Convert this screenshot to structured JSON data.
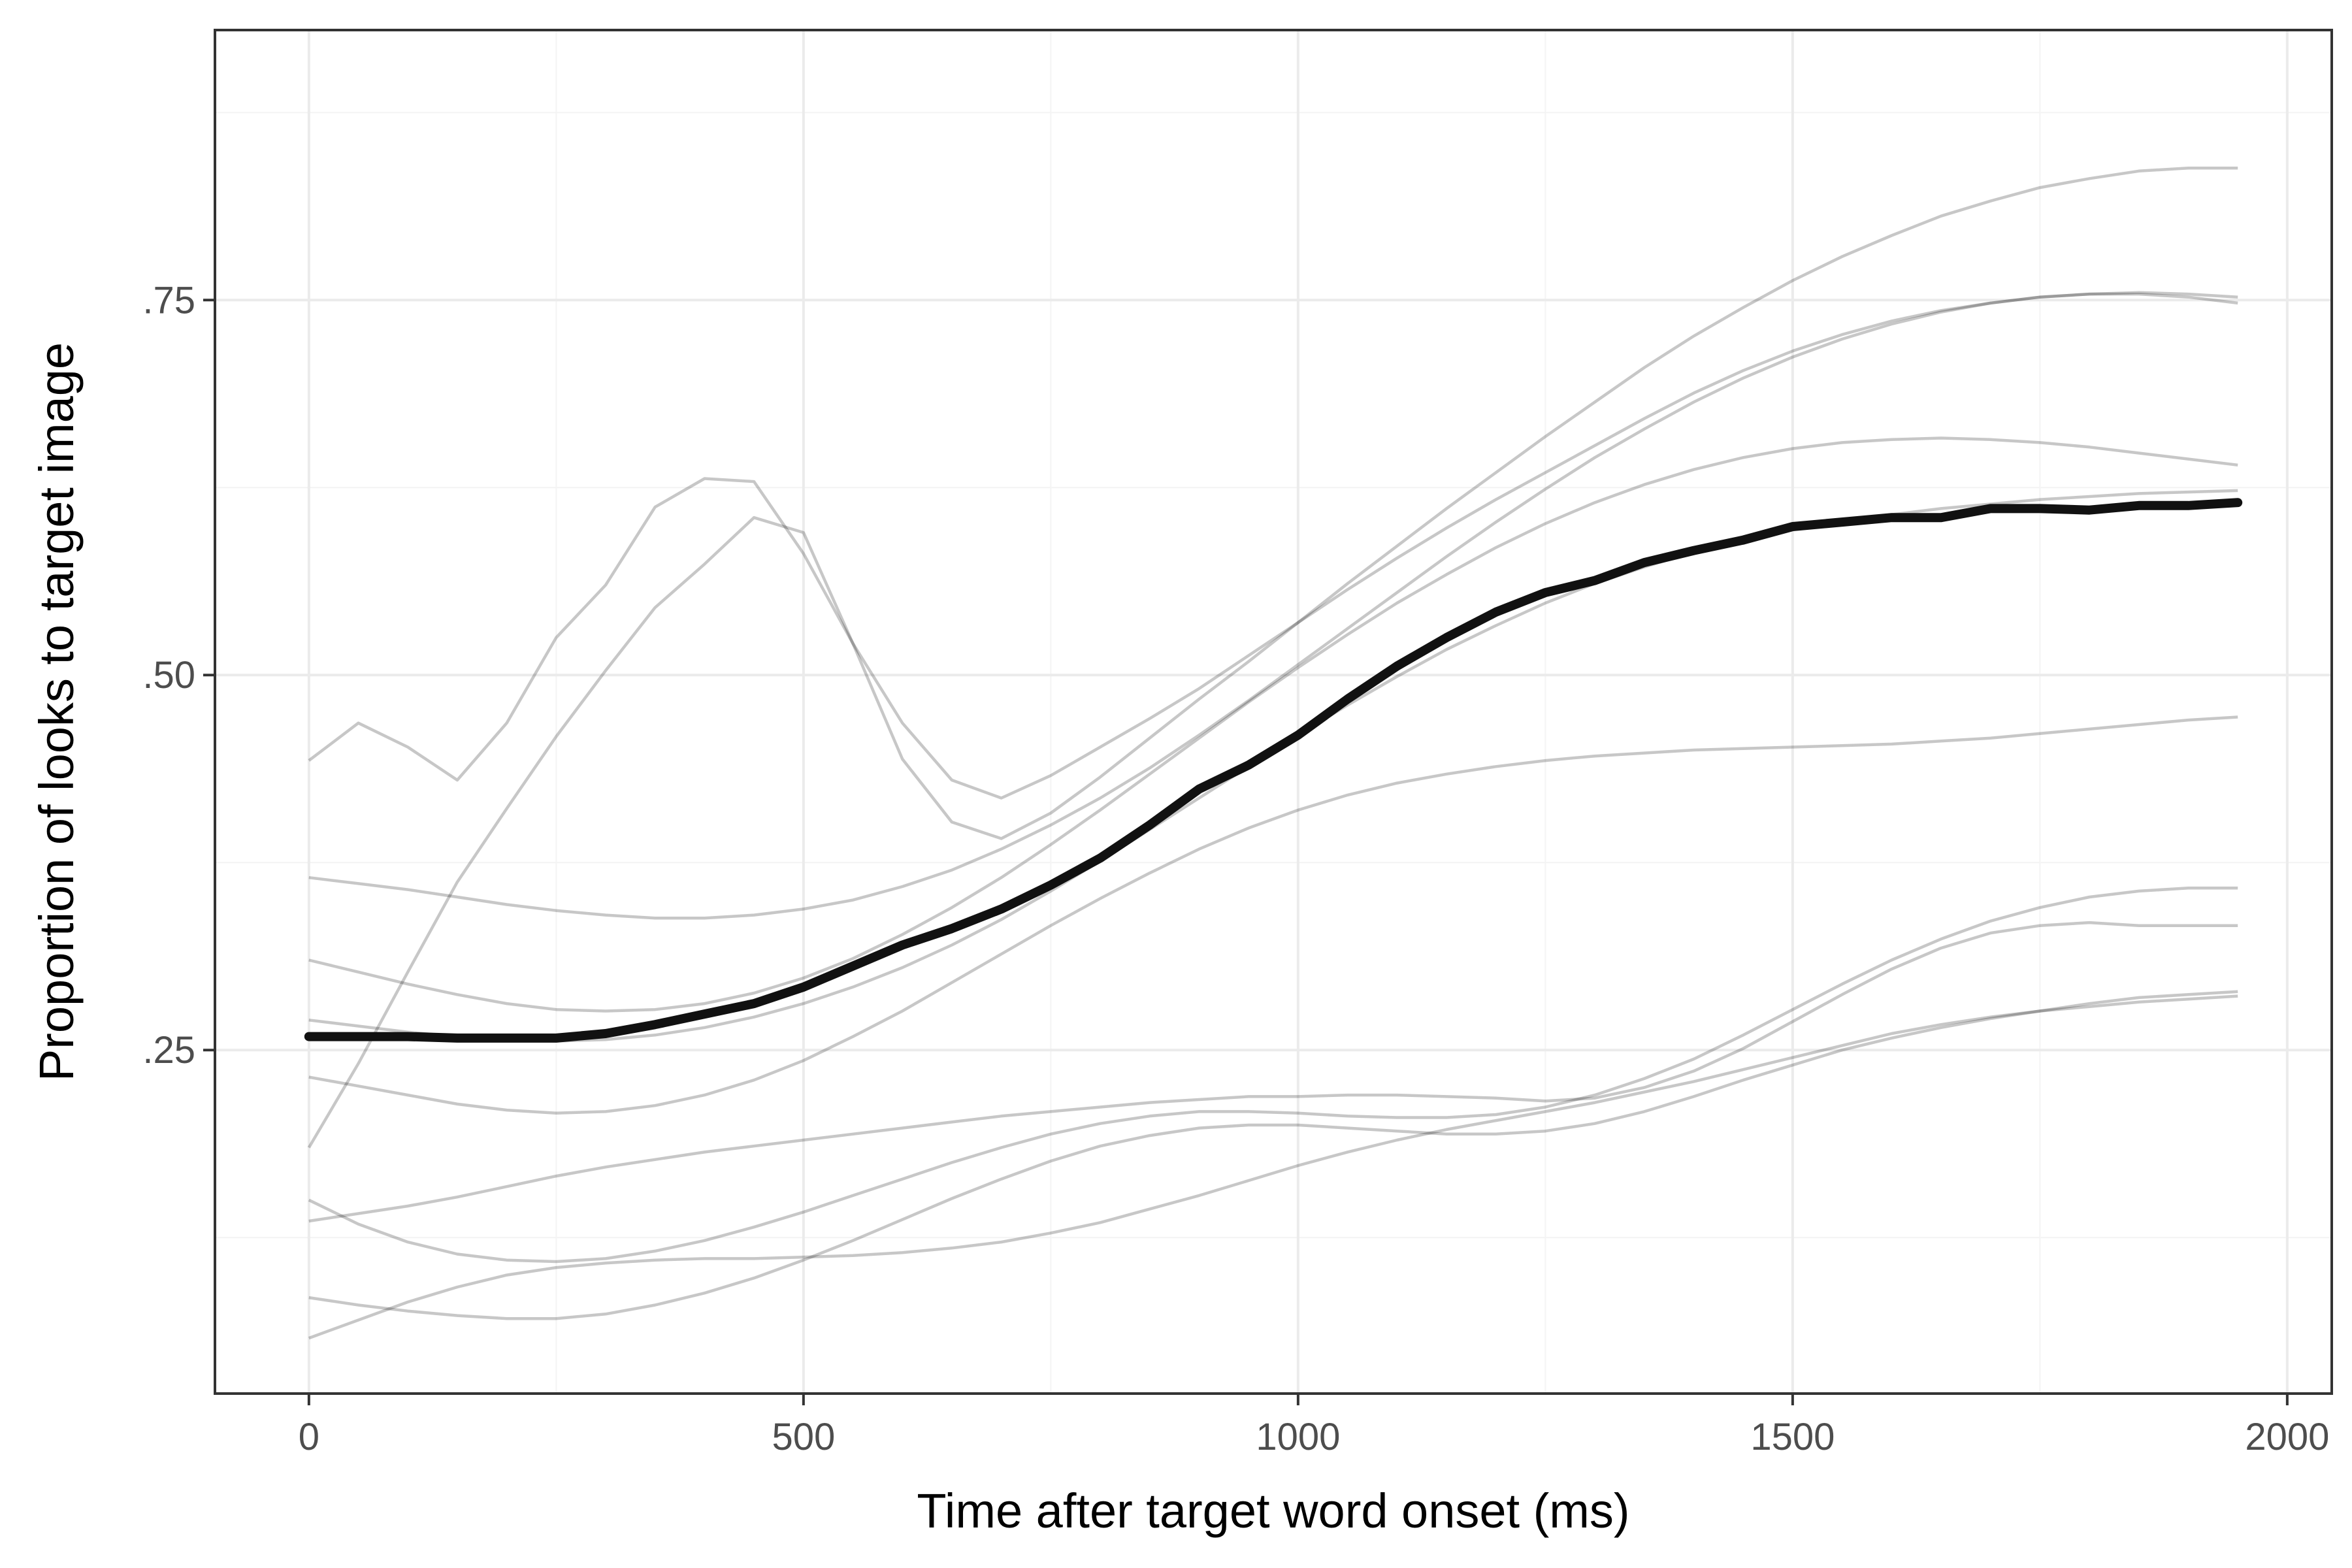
{
  "chart_data": {
    "type": "line",
    "title": "",
    "xlabel": "Time after target word onset (ms)",
    "ylabel": "Proportion of looks to target image",
    "xlim": [
      -95,
      2045
    ],
    "ylim": [
      0.021,
      0.93
    ],
    "x_ticks": [
      0,
      500,
      1000,
      1500,
      2000
    ],
    "x_tick_labels": [
      "0",
      "500",
      "1000",
      "1500",
      "2000"
    ],
    "y_ticks": [
      0.25,
      0.5,
      0.75
    ],
    "y_tick_labels": [
      ".25",
      ".50",
      ".75"
    ],
    "grid": true,
    "legend": "none",
    "style": {
      "individual_color": "#000000",
      "individual_opacity": 0.22,
      "mean_color": "#111111",
      "panel_border": "#333333",
      "grid_major": "#ebebeb",
      "grid_minor": "#f4f4f4"
    },
    "x": [
      0,
      50,
      100,
      150,
      200,
      250,
      300,
      350,
      400,
      450,
      500,
      550,
      600,
      650,
      700,
      750,
      800,
      850,
      900,
      950,
      1000,
      1050,
      1100,
      1150,
      1200,
      1250,
      1300,
      1350,
      1400,
      1450,
      1500,
      1550,
      1600,
      1650,
      1700,
      1750,
      1800,
      1850,
      1900,
      1950
    ],
    "mean_series": {
      "values": [
        0.259,
        0.259,
        0.259,
        0.258,
        0.258,
        0.258,
        0.261,
        0.267,
        0.274,
        0.281,
        0.292,
        0.306,
        0.32,
        0.331,
        0.344,
        0.36,
        0.378,
        0.4,
        0.424,
        0.44,
        0.46,
        0.484,
        0.506,
        0.525,
        0.542,
        0.555,
        0.563,
        0.575,
        0.583,
        0.59,
        0.599,
        0.602,
        0.605,
        0.605,
        0.611,
        0.611,
        0.61,
        0.613,
        0.613,
        0.615
      ]
    },
    "individual_series": [
      {
        "values": [
          0.443,
          0.468,
          0.452,
          0.43,
          0.468,
          0.525,
          0.56,
          0.612,
          0.631,
          0.629,
          0.581,
          0.521,
          0.468,
          0.43,
          0.418,
          0.433,
          0.452,
          0.471,
          0.491,
          0.513,
          0.535,
          0.557,
          0.578,
          0.598,
          0.617,
          0.635,
          0.653,
          0.671,
          0.688,
          0.703,
          0.716,
          0.727,
          0.736,
          0.743,
          0.748,
          0.752,
          0.754,
          0.754,
          0.752,
          0.748
        ]
      },
      {
        "values": [
          0.185,
          0.241,
          0.302,
          0.362,
          0.411,
          0.459,
          0.503,
          0.545,
          0.574,
          0.605,
          0.595,
          0.521,
          0.444,
          0.402,
          0.391,
          0.408,
          0.432,
          0.458,
          0.484,
          0.509,
          0.535,
          0.561,
          0.586,
          0.611,
          0.635,
          0.659,
          0.682,
          0.705,
          0.726,
          0.745,
          0.763,
          0.779,
          0.793,
          0.806,
          0.816,
          0.825,
          0.831,
          0.836,
          0.838,
          0.838
        ]
      },
      {
        "values": [
          0.136,
          0.141,
          0.146,
          0.152,
          0.159,
          0.166,
          0.172,
          0.177,
          0.182,
          0.186,
          0.19,
          0.194,
          0.198,
          0.202,
          0.206,
          0.209,
          0.212,
          0.215,
          0.217,
          0.219,
          0.219,
          0.22,
          0.22,
          0.219,
          0.218,
          0.216,
          0.218,
          0.225,
          0.236,
          0.251,
          0.269,
          0.287,
          0.304,
          0.318,
          0.328,
          0.333,
          0.335,
          0.333,
          0.333,
          0.333
        ]
      },
      {
        "values": [
          0.085,
          0.08,
          0.076,
          0.073,
          0.071,
          0.071,
          0.074,
          0.08,
          0.088,
          0.098,
          0.11,
          0.123,
          0.137,
          0.151,
          0.164,
          0.176,
          0.186,
          0.193,
          0.198,
          0.2,
          0.2,
          0.198,
          0.196,
          0.194,
          0.194,
          0.196,
          0.201,
          0.209,
          0.219,
          0.23,
          0.24,
          0.25,
          0.258,
          0.265,
          0.271,
          0.276,
          0.281,
          0.285,
          0.287,
          0.289
        ]
      },
      {
        "values": [
          0.058,
          0.07,
          0.082,
          0.092,
          0.1,
          0.105,
          0.108,
          0.11,
          0.111,
          0.111,
          0.112,
          0.113,
          0.115,
          0.118,
          0.122,
          0.128,
          0.135,
          0.144,
          0.153,
          0.163,
          0.173,
          0.182,
          0.19,
          0.197,
          0.203,
          0.209,
          0.215,
          0.222,
          0.229,
          0.237,
          0.245,
          0.253,
          0.261,
          0.267,
          0.272,
          0.276,
          0.279,
          0.282,
          0.284,
          0.286
        ]
      },
      {
        "values": [
          0.15,
          0.134,
          0.122,
          0.114,
          0.11,
          0.109,
          0.111,
          0.116,
          0.123,
          0.132,
          0.142,
          0.153,
          0.164,
          0.175,
          0.185,
          0.194,
          0.201,
          0.206,
          0.209,
          0.209,
          0.208,
          0.206,
          0.205,
          0.205,
          0.207,
          0.212,
          0.22,
          0.231,
          0.244,
          0.26,
          0.277,
          0.294,
          0.31,
          0.324,
          0.336,
          0.345,
          0.352,
          0.356,
          0.358,
          0.358
        ]
      },
      {
        "values": [
          0.232,
          0.226,
          0.22,
          0.214,
          0.21,
          0.208,
          0.209,
          0.213,
          0.22,
          0.23,
          0.243,
          0.259,
          0.276,
          0.295,
          0.314,
          0.333,
          0.351,
          0.368,
          0.384,
          0.398,
          0.41,
          0.42,
          0.428,
          0.434,
          0.439,
          0.443,
          0.446,
          0.448,
          0.45,
          0.451,
          0.452,
          0.453,
          0.454,
          0.456,
          0.458,
          0.461,
          0.464,
          0.467,
          0.47,
          0.472
        ]
      },
      {
        "values": [
          0.31,
          0.302,
          0.294,
          0.287,
          0.281,
          0.277,
          0.276,
          0.277,
          0.281,
          0.288,
          0.298,
          0.311,
          0.327,
          0.345,
          0.365,
          0.387,
          0.41,
          0.434,
          0.458,
          0.482,
          0.505,
          0.527,
          0.548,
          0.567,
          0.585,
          0.601,
          0.615,
          0.627,
          0.637,
          0.645,
          0.651,
          0.655,
          0.657,
          0.658,
          0.657,
          0.655,
          0.652,
          0.648,
          0.644,
          0.64
        ]
      },
      {
        "values": [
          0.365,
          0.361,
          0.357,
          0.352,
          0.347,
          0.343,
          0.34,
          0.338,
          0.338,
          0.34,
          0.344,
          0.35,
          0.359,
          0.37,
          0.384,
          0.4,
          0.418,
          0.438,
          0.46,
          0.483,
          0.507,
          0.531,
          0.555,
          0.579,
          0.602,
          0.624,
          0.645,
          0.664,
          0.682,
          0.698,
          0.712,
          0.724,
          0.734,
          0.742,
          0.748,
          0.752,
          0.754,
          0.755,
          0.754,
          0.752
        ]
      },
      {
        "values": [
          0.27,
          0.266,
          0.262,
          0.259,
          0.257,
          0.256,
          0.257,
          0.26,
          0.265,
          0.272,
          0.281,
          0.292,
          0.305,
          0.32,
          0.337,
          0.356,
          0.376,
          0.397,
          0.418,
          0.439,
          0.46,
          0.48,
          0.499,
          0.517,
          0.533,
          0.548,
          0.561,
          0.572,
          0.582,
          0.59,
          0.597,
          0.603,
          0.607,
          0.611,
          0.614,
          0.617,
          0.619,
          0.621,
          0.622,
          0.623
        ]
      }
    ]
  }
}
